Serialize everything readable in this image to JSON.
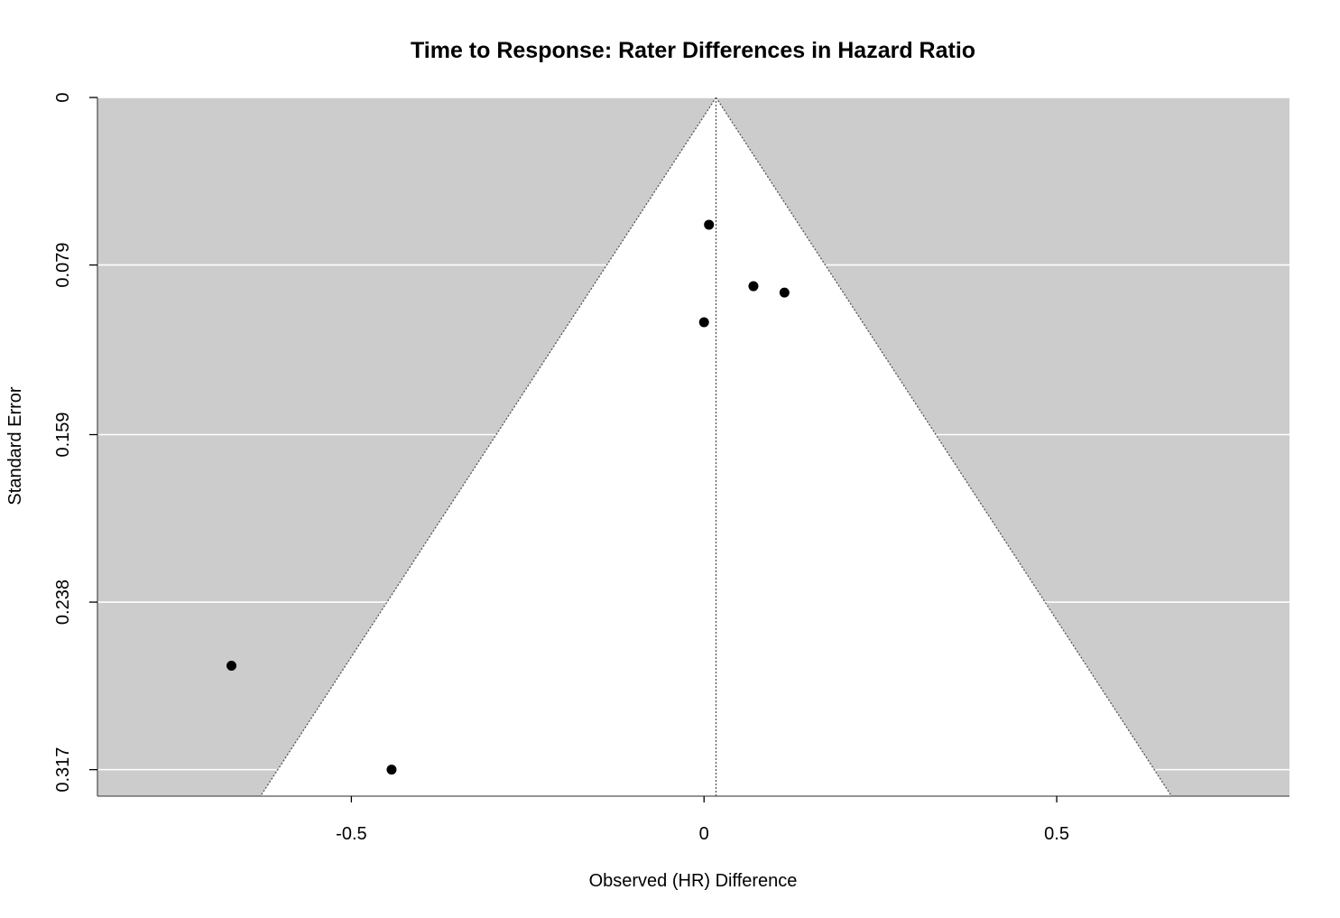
{
  "chart_data": {
    "type": "scatter",
    "subtype": "funnel",
    "title": "Time to Response: Rater Differences in Hazard Ratio",
    "xlabel": "Observed (HR) Difference",
    "ylabel": "Standard Error",
    "xlim": [
      -0.86,
      0.83
    ],
    "ylim": [
      0.3295,
      0
    ],
    "x_ticks": [
      {
        "value": -0.5,
        "label": "-0.5"
      },
      {
        "value": 0,
        "label": "0"
      },
      {
        "value": 0.5,
        "label": "0.5"
      }
    ],
    "y_ticks": [
      {
        "value": 0,
        "label": "0"
      },
      {
        "value": 0.079,
        "label": "0.079"
      },
      {
        "value": 0.159,
        "label": "0.159"
      },
      {
        "value": 0.238,
        "label": "0.238"
      },
      {
        "value": 0.317,
        "label": "0.317"
      }
    ],
    "pooled_estimate": 0.017,
    "funnel_z": 1.96,
    "grid": true,
    "background_color": "#cccccc",
    "funnel_fill": "#ffffff",
    "gridline_color": "#ffffff",
    "point_color": "#000000",
    "points": [
      {
        "x": 0.007,
        "y": 0.06
      },
      {
        "x": 0.07,
        "y": 0.089
      },
      {
        "x": 0.114,
        "y": 0.092
      },
      {
        "x": 0.0,
        "y": 0.106
      },
      {
        "x": -0.67,
        "y": 0.268
      },
      {
        "x": -0.443,
        "y": 0.317
      }
    ]
  }
}
